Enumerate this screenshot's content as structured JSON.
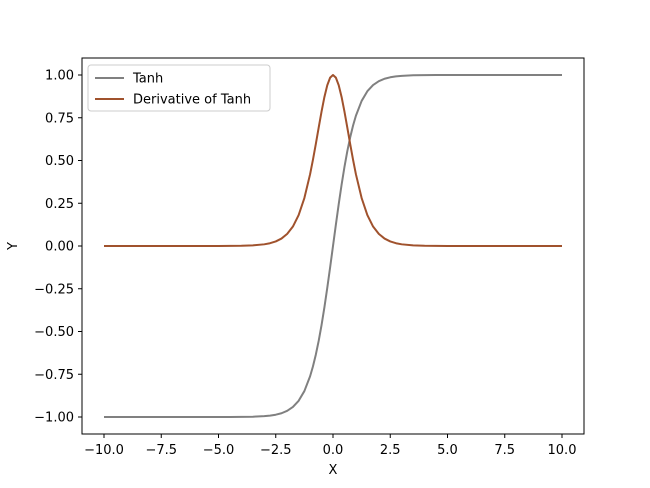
{
  "chart_data": {
    "type": "line",
    "title": "",
    "xlabel": "X",
    "ylabel": "Y",
    "xlim": [
      -10.0,
      10.0
    ],
    "ylim": [
      -1.0,
      1.0
    ],
    "x_ticks": [
      -10.0,
      -7.5,
      -5.0,
      -2.5,
      0.0,
      2.5,
      5.0,
      7.5,
      10.0
    ],
    "x_tick_labels": [
      "−10.0",
      "−7.5",
      "−5.0",
      "−2.5",
      "0.0",
      "2.5",
      "5.0",
      "7.5",
      "10.0"
    ],
    "y_ticks": [
      -1.0,
      -0.75,
      -0.5,
      -0.25,
      0.0,
      0.25,
      0.5,
      0.75,
      1.0
    ],
    "y_tick_labels": [
      "−1.00",
      "−0.75",
      "−0.50",
      "−0.25",
      "0.00",
      "0.25",
      "0.50",
      "0.75",
      "1.00"
    ],
    "grid": false,
    "legend_position": "top-left",
    "x": [
      -10.0,
      -9.0,
      -8.0,
      -7.0,
      -6.0,
      -5.0,
      -4.5,
      -4.0,
      -3.5,
      -3.0,
      -2.75,
      -2.5,
      -2.25,
      -2.0,
      -1.75,
      -1.5,
      -1.25,
      -1.0,
      -0.875,
      -0.75,
      -0.625,
      -0.5,
      -0.375,
      -0.25,
      -0.125,
      0.0,
      0.125,
      0.25,
      0.375,
      0.5,
      0.625,
      0.75,
      0.875,
      1.0,
      1.25,
      1.5,
      1.75,
      2.0,
      2.25,
      2.5,
      2.75,
      3.0,
      3.5,
      4.0,
      4.5,
      5.0,
      6.0,
      7.0,
      8.0,
      9.0,
      10.0
    ],
    "series": [
      {
        "name": "Tanh",
        "color": "#808080",
        "values": [
          -1.0,
          -1.0,
          -1.0,
          -1.0,
          -1.0,
          -0.9999,
          -0.9998,
          -0.9993,
          -0.9982,
          -0.9951,
          -0.9918,
          -0.9866,
          -0.978,
          -0.964,
          -0.9414,
          -0.9051,
          -0.8483,
          -0.7616,
          -0.7039,
          -0.6351,
          -0.5546,
          -0.4621,
          -0.3584,
          -0.2449,
          -0.1244,
          0.0,
          0.1244,
          0.2449,
          0.3584,
          0.4621,
          0.5546,
          0.6351,
          0.7039,
          0.7616,
          0.8483,
          0.9051,
          0.9414,
          0.964,
          0.978,
          0.9866,
          0.9918,
          0.9951,
          0.9982,
          0.9993,
          0.9998,
          0.9999,
          1.0,
          1.0,
          1.0,
          1.0,
          1.0
        ]
      },
      {
        "name": "Derivative of Tanh",
        "color": "#a0522d",
        "values": [
          0.0,
          0.0,
          0.0,
          0.0,
          0.0,
          0.0002,
          0.0005,
          0.0013,
          0.0036,
          0.0099,
          0.0163,
          0.0266,
          0.0435,
          0.0707,
          0.1138,
          0.1807,
          0.2805,
          0.42,
          0.5045,
          0.5966,
          0.6924,
          0.7864,
          0.8716,
          0.94,
          0.9845,
          1.0,
          0.9845,
          0.94,
          0.8716,
          0.7864,
          0.6924,
          0.5966,
          0.5045,
          0.42,
          0.2805,
          0.1807,
          0.1138,
          0.0707,
          0.0435,
          0.0266,
          0.0163,
          0.0099,
          0.0036,
          0.0013,
          0.0005,
          0.0002,
          0.0,
          0.0,
          0.0,
          0.0,
          0.0
        ]
      }
    ]
  }
}
